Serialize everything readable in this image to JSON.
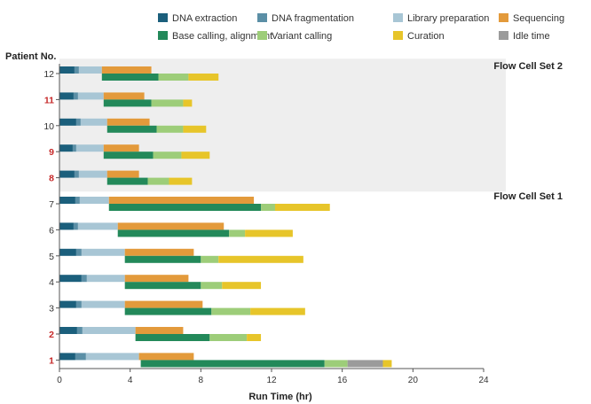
{
  "chart_data": {
    "type": "bar",
    "orientation": "horizontal",
    "stacked": true,
    "xlabel": "Run Time (hr)",
    "ylabel": "Patient No.",
    "xlim": [
      0,
      24
    ],
    "xticks": [
      "0",
      "4",
      "8",
      "12",
      "16",
      "20",
      "24"
    ],
    "legend": [
      {
        "key": "dna_extraction",
        "label": "DNA extraction",
        "color": "#1b5f7c"
      },
      {
        "key": "dna_fragmentation",
        "label": "DNA fragmentation",
        "color": "#5b8fa6"
      },
      {
        "key": "library_preparation",
        "label": "Library preparation",
        "color": "#a8c6d5"
      },
      {
        "key": "sequencing",
        "label": "Sequencing",
        "color": "#e39a3b"
      },
      {
        "key": "base_calling",
        "label": "Base calling, alignment",
        "color": "#23895a"
      },
      {
        "key": "variant_calling",
        "label": "Variant calling",
        "color": "#9dcd79"
      },
      {
        "key": "curation",
        "label": "Curation",
        "color": "#e7c52a"
      },
      {
        "key": "idle_time",
        "label": "Idle time",
        "color": "#9b9b9b"
      }
    ],
    "groups": [
      {
        "label": "Flow Cell Set 2",
        "patients": [
          "12",
          "11",
          "10",
          "9",
          "8"
        ],
        "shaded": true
      },
      {
        "label": "Flow Cell Set 1",
        "patients": [
          "7",
          "6",
          "5",
          "4",
          "3",
          "2",
          "1"
        ],
        "shaded": false
      }
    ],
    "patients": [
      {
        "label": "12",
        "highlight": false,
        "top": [
          [
            "dna_extraction",
            0.0,
            0.85
          ],
          [
            "dna_fragmentation",
            0.85,
            1.1
          ],
          [
            "library_preparation",
            1.1,
            2.4
          ],
          [
            "sequencing",
            2.4,
            5.2
          ]
        ],
        "bottom": [
          [
            "base_calling",
            2.4,
            5.6
          ],
          [
            "variant_calling",
            5.6,
            7.3
          ],
          [
            "curation",
            7.3,
            9.0
          ]
        ]
      },
      {
        "label": "11",
        "highlight": true,
        "top": [
          [
            "dna_extraction",
            0.0,
            0.8
          ],
          [
            "dna_fragmentation",
            0.8,
            1.05
          ],
          [
            "library_preparation",
            1.05,
            2.5
          ],
          [
            "sequencing",
            2.5,
            4.8
          ]
        ],
        "bottom": [
          [
            "base_calling",
            2.5,
            5.2
          ],
          [
            "variant_calling",
            5.2,
            7.0
          ],
          [
            "curation",
            7.0,
            7.5
          ]
        ]
      },
      {
        "label": "10",
        "highlight": false,
        "top": [
          [
            "dna_extraction",
            0.0,
            0.95
          ],
          [
            "dna_fragmentation",
            0.95,
            1.2
          ],
          [
            "library_preparation",
            1.2,
            2.7
          ],
          [
            "sequencing",
            2.7,
            5.1
          ]
        ],
        "bottom": [
          [
            "base_calling",
            2.7,
            5.5
          ],
          [
            "variant_calling",
            5.5,
            7.0
          ],
          [
            "curation",
            7.0,
            8.3
          ]
        ]
      },
      {
        "label": "9",
        "highlight": true,
        "top": [
          [
            "dna_extraction",
            0.0,
            0.75
          ],
          [
            "dna_fragmentation",
            0.75,
            0.95
          ],
          [
            "library_preparation",
            0.95,
            2.5
          ],
          [
            "sequencing",
            2.5,
            4.5
          ]
        ],
        "bottom": [
          [
            "base_calling",
            2.5,
            5.3
          ],
          [
            "variant_calling",
            5.3,
            6.9
          ],
          [
            "curation",
            6.9,
            8.5
          ]
        ]
      },
      {
        "label": "8",
        "highlight": true,
        "top": [
          [
            "dna_extraction",
            0.0,
            0.85
          ],
          [
            "dna_fragmentation",
            0.85,
            1.1
          ],
          [
            "library_preparation",
            1.1,
            2.7
          ],
          [
            "sequencing",
            2.7,
            4.5
          ]
        ],
        "bottom": [
          [
            "base_calling",
            2.7,
            5.0
          ],
          [
            "variant_calling",
            5.0,
            6.2
          ],
          [
            "curation",
            6.2,
            7.5
          ]
        ]
      },
      {
        "label": "7",
        "highlight": false,
        "top": [
          [
            "dna_extraction",
            0.0,
            0.9
          ],
          [
            "dna_fragmentation",
            0.9,
            1.15
          ],
          [
            "library_preparation",
            1.15,
            2.8
          ],
          [
            "sequencing",
            2.8,
            11.0
          ]
        ],
        "bottom": [
          [
            "base_calling",
            2.8,
            11.4
          ],
          [
            "variant_calling",
            11.4,
            12.2
          ],
          [
            "curation",
            12.2,
            15.3
          ]
        ]
      },
      {
        "label": "6",
        "highlight": false,
        "top": [
          [
            "dna_extraction",
            0.0,
            0.8
          ],
          [
            "dna_fragmentation",
            0.8,
            1.05
          ],
          [
            "library_preparation",
            1.05,
            3.3
          ],
          [
            "sequencing",
            3.3,
            9.3
          ]
        ],
        "bottom": [
          [
            "base_calling",
            3.3,
            9.6
          ],
          [
            "variant_calling",
            9.6,
            10.5
          ],
          [
            "curation",
            10.5,
            13.2
          ]
        ]
      },
      {
        "label": "5",
        "highlight": false,
        "top": [
          [
            "dna_extraction",
            0.0,
            0.95
          ],
          [
            "dna_fragmentation",
            0.95,
            1.25
          ],
          [
            "library_preparation",
            1.25,
            3.7
          ],
          [
            "sequencing",
            3.7,
            7.6
          ]
        ],
        "bottom": [
          [
            "base_calling",
            3.7,
            8.0
          ],
          [
            "variant_calling",
            8.0,
            9.0
          ],
          [
            "curation",
            9.0,
            13.8
          ]
        ]
      },
      {
        "label": "4",
        "highlight": false,
        "top": [
          [
            "dna_extraction",
            0.0,
            1.25
          ],
          [
            "dna_fragmentation",
            1.25,
            1.55
          ],
          [
            "library_preparation",
            1.55,
            3.7
          ],
          [
            "sequencing",
            3.7,
            7.3
          ]
        ],
        "bottom": [
          [
            "base_calling",
            3.7,
            8.0
          ],
          [
            "variant_calling",
            8.0,
            9.2
          ],
          [
            "curation",
            9.2,
            11.4
          ]
        ]
      },
      {
        "label": "3",
        "highlight": false,
        "top": [
          [
            "dna_extraction",
            0.0,
            0.95
          ],
          [
            "dna_fragmentation",
            0.95,
            1.25
          ],
          [
            "library_preparation",
            1.25,
            3.7
          ],
          [
            "sequencing",
            3.7,
            8.1
          ]
        ],
        "bottom": [
          [
            "base_calling",
            3.7,
            8.6
          ],
          [
            "variant_calling",
            8.6,
            10.8
          ],
          [
            "curation",
            10.8,
            13.9
          ]
        ]
      },
      {
        "label": "2",
        "highlight": true,
        "top": [
          [
            "dna_extraction",
            0.0,
            1.0
          ],
          [
            "dna_fragmentation",
            1.0,
            1.3
          ],
          [
            "library_preparation",
            1.3,
            4.3
          ],
          [
            "sequencing",
            4.3,
            7.0
          ]
        ],
        "bottom": [
          [
            "base_calling",
            4.3,
            8.5
          ],
          [
            "variant_calling",
            8.5,
            10.6
          ],
          [
            "curation",
            10.6,
            11.4
          ]
        ]
      },
      {
        "label": "1",
        "highlight": true,
        "top": [
          [
            "dna_extraction",
            0.0,
            0.9
          ],
          [
            "dna_fragmentation",
            0.9,
            1.5
          ],
          [
            "library_preparation",
            1.5,
            4.5
          ],
          [
            "sequencing",
            4.5,
            7.6
          ]
        ],
        "bottom": [
          [
            "base_calling",
            4.6,
            15.0
          ],
          [
            "variant_calling",
            15.0,
            16.3
          ],
          [
            "idle_time",
            16.3,
            18.3
          ],
          [
            "curation",
            18.3,
            18.8
          ]
        ]
      }
    ]
  }
}
